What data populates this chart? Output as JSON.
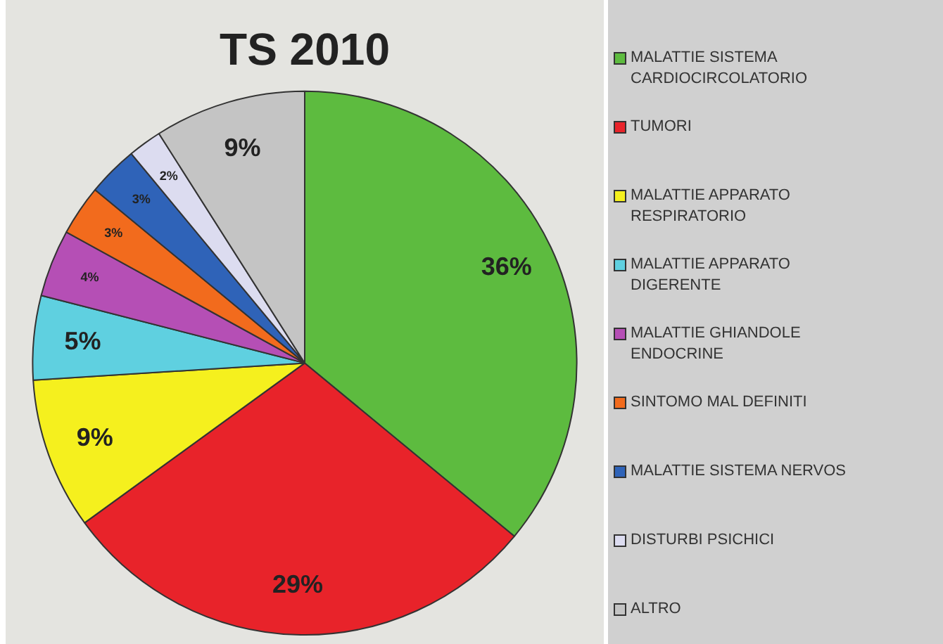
{
  "chart_data": {
    "type": "pie",
    "title": "TS 2010",
    "categories": [
      "MALATTIE SISTEMA CARDIOCIRCOLATORIO",
      "TUMORI",
      "MALATTIE APPARATO RESPIRATORIO",
      "MALATTIE APPARATO DIGERENTE",
      "MALATTIE GHIANDOLE ENDOCRINE",
      "SINTOMO MAL DEFINITI",
      "MALATTIE SISTEMA NERVOS",
      "DISTURBI PSICHICI",
      "ALTRO"
    ],
    "values": [
      36,
      29,
      9,
      5,
      4,
      3,
      3,
      2,
      9
    ],
    "colors": [
      "#5dbb3f",
      "#e8232a",
      "#f5f01e",
      "#5fd0e0",
      "#b54fb5",
      "#f26b1d",
      "#2f63b8",
      "#dcdcf0",
      "#c4c4c4"
    ],
    "value_labels": [
      "36%",
      "29%",
      "9%",
      "5%",
      "4%",
      "3%",
      "3%",
      "2%",
      "9%"
    ],
    "legend": "right"
  }
}
